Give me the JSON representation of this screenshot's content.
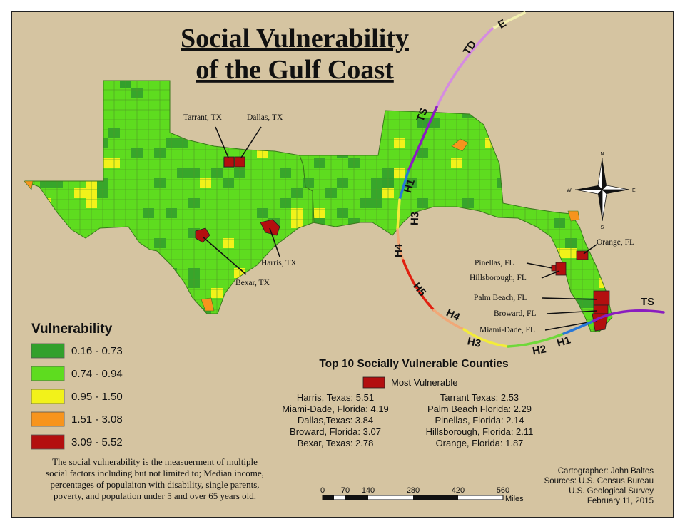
{
  "title": {
    "line1": "Social Vulnerability",
    "line2": "of the Gulf Coast"
  },
  "colors": {
    "background": "#d5c4a1",
    "class1": "#33a02c",
    "class2": "#5edc1f",
    "class3": "#f2f21a",
    "class4": "#f7941d",
    "class5": "#b30f0f",
    "track_td": "#d58ce0",
    "track_ts": "#8a1cc0",
    "track_h1": "#2878d8",
    "track_h2": "#6fd83a",
    "track_h3": "#f3ec3a",
    "track_h4": "#f0a878",
    "track_h5": "#e02010",
    "track_e": "#f3f0b0"
  },
  "counties": [
    {
      "label": "Tarrant, TX"
    },
    {
      "label": "Dallas, TX"
    },
    {
      "label": "Harris, TX"
    },
    {
      "label": "Bexar, TX"
    },
    {
      "label": "Orange, FL"
    },
    {
      "label": "Pinellas, FL"
    },
    {
      "label": "Hillsborough, FL"
    },
    {
      "label": "Palm Beach, FL"
    },
    {
      "label": "Broward, FL"
    },
    {
      "label": "Miami-Dade, FL"
    }
  ],
  "hurricane_track": {
    "labels": [
      "E",
      "TD",
      "TS",
      "H1",
      "H3",
      "H4",
      "H5",
      "H4",
      "H3",
      "H2",
      "H1",
      "TS"
    ]
  },
  "compass": {
    "n": "N",
    "s": "S",
    "e": "E",
    "w": "W"
  },
  "legend": {
    "title": "Vulnerability",
    "classes": [
      {
        "label": "0.16 - 0.73",
        "color": "#33a02c"
      },
      {
        "label": "0.74 - 0.94",
        "color": "#5edc1f"
      },
      {
        "label": "0.95 - 1.50",
        "color": "#f2f21a"
      },
      {
        "label": "1.51 - 3.08",
        "color": "#f7941d"
      },
      {
        "label": "3.09 - 5.52",
        "color": "#b30f0f"
      }
    ]
  },
  "description": [
    "The social vulnerability is the measuerment of multiple",
    "social factors including but not limited to; Median income,",
    "percentages of populaiton with disability, single parents,",
    "poverty, and population under 5 and over 65 years old."
  ],
  "top10": {
    "title": "Top 10 Socially Vulnerable Counties",
    "key_label": "Most Vulnerable",
    "left": [
      "Harris, Texas: 5.51",
      "Miami-Dade, Florida: 4.19",
      "Dallas,Texas: 3.84",
      "Broward, Florida: 3.07",
      "Bexar, Texas: 2.78"
    ],
    "right": [
      "Tarrant Texas: 2.53",
      "Palm Beach Florida: 2.29",
      "Pinellas, Florida: 2.14",
      "Hillsborough, Florida: 2.11",
      "Orange, Florida: 1.87"
    ]
  },
  "credits": [
    "Cartographer: John Baltes",
    "Sources: U.S. Census Bureau",
    "U.S. Geological Survey",
    "February 11, 2015"
  ],
  "scale_bar": {
    "ticks": [
      "0",
      "70",
      "140",
      "280",
      "420",
      "560"
    ],
    "unit": "Miles"
  }
}
